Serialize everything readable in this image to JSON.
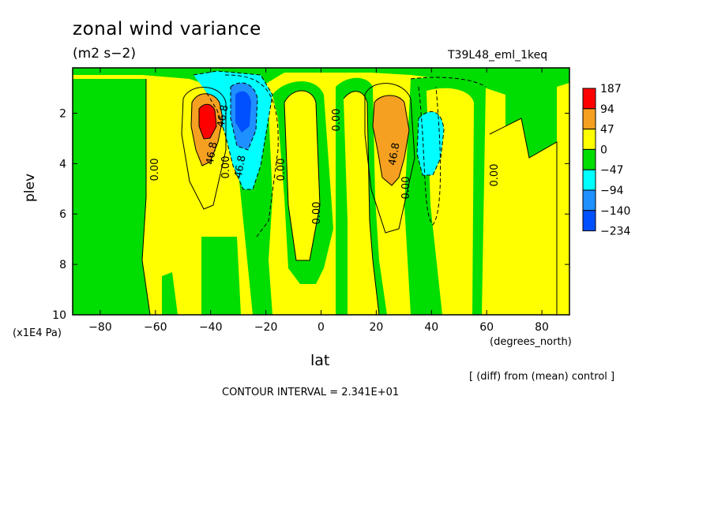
{
  "chart_data": {
    "type": "heatmap",
    "title": "zonal wind variance",
    "units": "(m2 s−2)",
    "run_name": "T39L48_eml_1keq",
    "xlabel": "lat",
    "x_units": "(degrees_north)",
    "ylabel": "plev",
    "y_units": "(x1E4 Pa)",
    "xlim": [
      -90,
      90
    ],
    "ylim": [
      10,
      0.2
    ],
    "x_ticks": [
      -80,
      -60,
      -40,
      -20,
      0,
      20,
      40,
      60,
      80
    ],
    "y_ticks": [
      2,
      4,
      6,
      8,
      10
    ],
    "note": "[ (diff) from (mean) control ]",
    "contour_interval": "CONTOUR INTERVAL = 2.341E+01",
    "colorbar": {
      "labels": [
        "187",
        "94",
        "47",
        "0",
        "−47",
        "−94",
        "−140",
        "−234"
      ],
      "colors": [
        "#ff0000",
        "#f5a020",
        "#ffff00",
        "#00dd00",
        "#00ffff",
        "#1e90ff",
        "#0050ff"
      ]
    },
    "contour_labels": [
      "0.00",
      "46.8",
      "46.8",
      "0.00",
      "46.8",
      "0.00",
      "0.00",
      "0.00",
      "46.8",
      "0.00",
      "0.00",
      "0.00"
    ],
    "features": [
      {
        "kind": "max",
        "lat": -40,
        "plev": 2.2,
        "value": 187
      },
      {
        "kind": "min",
        "lat": -28,
        "plev": 2.0,
        "value": -140
      },
      {
        "kind": "max",
        "lat": 25,
        "plev": 2.5,
        "value": 94
      },
      {
        "kind": "min",
        "lat": 38,
        "plev": 3.0,
        "value": -94
      }
    ]
  }
}
